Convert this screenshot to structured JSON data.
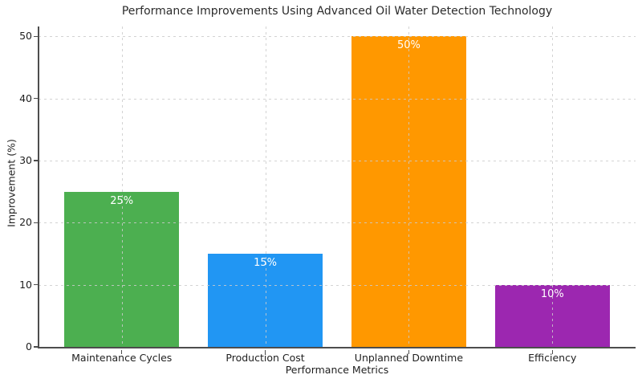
{
  "chart_data": {
    "type": "bar",
    "title": "Performance Improvements Using Advanced Oil Water Detection Technology",
    "xlabel": "Performance Metrics",
    "ylabel": "Improvement (%)",
    "categories": [
      "Maintenance Cycles",
      "Production Cost",
      "Unplanned Downtime",
      "Efficiency"
    ],
    "values": [
      25,
      15,
      50,
      10
    ],
    "value_labels": [
      "25%",
      "15%",
      "50%",
      "10%"
    ],
    "bar_colors": [
      "#4caf50",
      "#2196f3",
      "#ff9800",
      "#9c27b0"
    ],
    "value_label_color": "#ffffff",
    "yticks": [
      0,
      10,
      20,
      30,
      40,
      50
    ],
    "ylim": [
      0,
      51.6
    ],
    "xlim": [
      -0.58,
      3.58
    ],
    "bar_width": 0.8,
    "grid": true,
    "grid_style": "dashed",
    "grid_above_bars": true,
    "legend": false,
    "background_color": "#ffffff",
    "spine_color": "#4d4d4d",
    "text_color": "#1f1f1f"
  }
}
